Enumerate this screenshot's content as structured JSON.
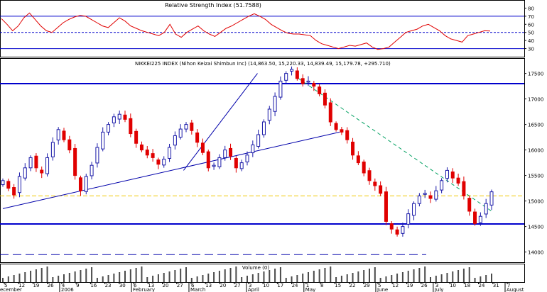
{
  "chart_data": [
    {
      "type": "line",
      "title": "Relative Strength Index (51.7588)",
      "ylim": [
        20,
        90
      ],
      "yticks": [
        30,
        40,
        50,
        60,
        70,
        80
      ],
      "reference_lines": [
        {
          "value": 70,
          "style": "solid"
        },
        {
          "value": 50,
          "style": "dashed"
        },
        {
          "value": 30,
          "style": "solid"
        }
      ],
      "series": [
        {
          "color": "#e00000",
          "values": [
            67,
            60,
            52,
            58,
            68,
            74,
            66,
            58,
            52,
            50,
            56,
            62,
            66,
            69,
            71,
            70,
            66,
            62,
            58,
            56,
            62,
            68,
            64,
            58,
            55,
            52,
            50,
            48,
            46,
            50,
            60,
            48,
            44,
            50,
            54,
            58,
            52,
            48,
            45,
            50,
            55,
            58,
            62,
            66,
            70,
            73,
            70,
            66,
            60,
            56,
            52,
            49,
            48,
            48,
            47,
            46,
            40,
            36,
            34,
            32,
            30,
            32,
            34,
            33,
            35,
            37,
            32,
            29,
            30,
            32,
            38,
            44,
            50,
            52,
            54,
            58,
            60,
            56,
            52,
            46,
            42,
            40,
            38,
            46,
            48,
            50,
            52,
            51.76
          ]
        }
      ]
    },
    {
      "type": "candlestick",
      "title": "NIKKEI225 INDEX (Nihon Keizai Shimbun Inc) (14,863.50, 15,220.33, 14,839.49, 15,179.78, +295.710)",
      "ylim": [
        13800,
        17800
      ],
      "yticks": [
        14000,
        14500,
        15000,
        15500,
        16000,
        16500,
        17000,
        17500
      ],
      "up_color": "#1a1aa8",
      "down_color": "#e00000",
      "closes": [
        15400,
        15250,
        15120,
        15480,
        15650,
        15850,
        15650,
        15550,
        15850,
        16150,
        16400,
        16200,
        16000,
        15500,
        15200,
        15480,
        15700,
        16050,
        16350,
        16500,
        16650,
        16700,
        16600,
        16320,
        16130,
        16000,
        15900,
        15850,
        15720,
        15820,
        16050,
        16280,
        16410,
        16500,
        16380,
        16150,
        15950,
        15650,
        15700,
        15850,
        16000,
        15880,
        15650,
        15750,
        15900,
        16100,
        16300,
        16550,
        16800,
        17050,
        17350,
        17500,
        17580,
        17400,
        17300,
        17350,
        17250,
        17100,
        16880,
        16550,
        16400,
        16350,
        16200,
        15900,
        15750,
        15550,
        15400,
        15300,
        15150,
        14600,
        14450,
        14350,
        14500,
        14750,
        14950,
        15100,
        15150,
        15050,
        15200,
        15400,
        15600,
        15450,
        15350,
        15100,
        14800,
        14560,
        14700,
        14950,
        15180
      ],
      "horizontal_levels": [
        {
          "value": 17300,
          "color": "#0000cc",
          "style": "solid-thick"
        },
        {
          "value": 14550,
          "color": "#0000cc",
          "style": "solid-thick"
        },
        {
          "value": 15100,
          "color": "#f0c800",
          "style": "dashed"
        },
        {
          "value": 13950,
          "color": "#0000aa",
          "style": "long-dashed"
        }
      ],
      "trend_lines": [
        {
          "from": [
            0,
            14850
          ],
          "to": [
            82,
            16350
          ],
          "color": "#0000aa",
          "style": "solid"
        },
        {
          "from": [
            44,
            15600
          ],
          "to": [
            62,
            17500
          ],
          "color": "#0000aa",
          "style": "solid"
        },
        {
          "from": [
            72,
            17400
          ],
          "to": [
            119,
            14800
          ],
          "color": "#00a060",
          "style": "dashed"
        }
      ]
    },
    {
      "type": "bar",
      "title": "Volume (0)",
      "color": "#4a4a4a"
    }
  ],
  "x_axis": {
    "ticks": [
      {
        "label": "5",
        "period": ""
      },
      {
        "label": "12",
        "period": ""
      },
      {
        "label": "19",
        "period": ""
      },
      {
        "label": "26",
        "period": ""
      },
      {
        "label": "4",
        "period": "2006"
      },
      {
        "label": "9",
        "period": ""
      },
      {
        "label": "16",
        "period": ""
      },
      {
        "label": "23",
        "period": ""
      },
      {
        "label": "30",
        "period": ""
      },
      {
        "label": "6",
        "period": "February"
      },
      {
        "label": "13",
        "period": ""
      },
      {
        "label": "20",
        "period": ""
      },
      {
        "label": "27",
        "period": ""
      },
      {
        "label": "6",
        "period": "March"
      },
      {
        "label": "13",
        "period": ""
      },
      {
        "label": "20",
        "period": ""
      },
      {
        "label": "27",
        "period": ""
      },
      {
        "label": "3",
        "period": "April"
      },
      {
        "label": "10",
        "period": ""
      },
      {
        "label": "17",
        "period": ""
      },
      {
        "label": "24",
        "period": ""
      },
      {
        "label": "1",
        "period": "May"
      },
      {
        "label": "8",
        "period": ""
      },
      {
        "label": "15",
        "period": ""
      },
      {
        "label": "22",
        "period": ""
      },
      {
        "label": "29",
        "period": ""
      },
      {
        "label": "5",
        "period": "June"
      },
      {
        "label": "12",
        "period": ""
      },
      {
        "label": "19",
        "period": ""
      },
      {
        "label": "26",
        "period": ""
      },
      {
        "label": "3",
        "period": "July"
      },
      {
        "label": "10",
        "period": ""
      },
      {
        "label": "18",
        "period": ""
      },
      {
        "label": "24",
        "period": ""
      },
      {
        "label": "31",
        "period": ""
      },
      {
        "label": "7",
        "period": "August"
      }
    ],
    "first_period_label": "ecember"
  },
  "colors": {
    "border": "#000000",
    "grid": "#c8c8c8",
    "ref_line": "#0000cc"
  }
}
